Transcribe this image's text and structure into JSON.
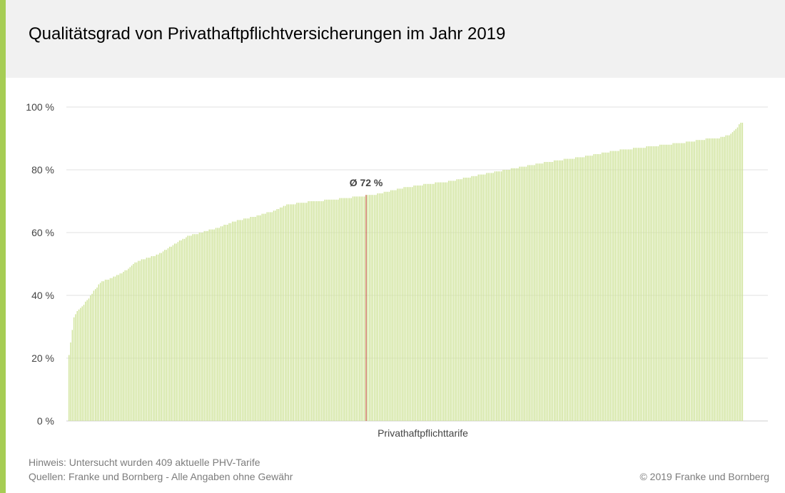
{
  "header": {
    "title": "Qualitätsgrad von Privathaftpflichtversicherungen im Jahr 2019"
  },
  "colors": {
    "accent": "#a6cd54",
    "header_background": "#f1f1f1",
    "bar": "#cfe39a",
    "average_marker": "#c0392b",
    "gridline": "#e2e2e2",
    "text": "#444444",
    "muted_text": "#7c7c7c"
  },
  "chart_data": {
    "type": "bar",
    "title": "Qualitätsgrad von Privathaftpflichtversicherungen im Jahr 2019",
    "xlabel": "Privathaftpflichttarife",
    "ylabel": "",
    "unit": "%",
    "ylim": [
      0,
      100
    ],
    "yticks": [
      0,
      20,
      40,
      60,
      80,
      100
    ],
    "ytick_labels": [
      "0 %",
      "20 %",
      "40 %",
      "60 %",
      "80 %",
      "100 %"
    ],
    "grid": true,
    "sorted": "ascending",
    "category_count": 409,
    "value_profile": [
      [
        0,
        21
      ],
      [
        1,
        25
      ],
      [
        2,
        29
      ],
      [
        3,
        33
      ],
      [
        5,
        35
      ],
      [
        8,
        36.5
      ],
      [
        12,
        39
      ],
      [
        16,
        42
      ],
      [
        20,
        44.5
      ],
      [
        25,
        45.3
      ],
      [
        30,
        46.5
      ],
      [
        36,
        48.5
      ],
      [
        40,
        50.5
      ],
      [
        45,
        51.5
      ],
      [
        50,
        52.3
      ],
      [
        55,
        53.3
      ],
      [
        60,
        55
      ],
      [
        65,
        56.7
      ],
      [
        72,
        58.8
      ],
      [
        80,
        60
      ],
      [
        90,
        61.5
      ],
      [
        100,
        63.5
      ],
      [
        115,
        65.5
      ],
      [
        125,
        67
      ],
      [
        132,
        68.8
      ],
      [
        140,
        69.5
      ],
      [
        160,
        70.5
      ],
      [
        175,
        71.5
      ],
      [
        185,
        72
      ],
      [
        200,
        74
      ],
      [
        215,
        75.3
      ],
      [
        230,
        76.3
      ],
      [
        250,
        78.5
      ],
      [
        270,
        80.5
      ],
      [
        290,
        82.5
      ],
      [
        310,
        84
      ],
      [
        330,
        86
      ],
      [
        350,
        87.3
      ],
      [
        370,
        88.5
      ],
      [
        385,
        89.7
      ],
      [
        395,
        90.3
      ],
      [
        400,
        91.2
      ],
      [
        403,
        92.5
      ],
      [
        405,
        93.5
      ],
      [
        406,
        94.3
      ],
      [
        407,
        95
      ],
      [
        408,
        95.2
      ]
    ],
    "average": {
      "value": 72,
      "label": "Ø 72 %"
    }
  },
  "footer": {
    "note": "Hinweis: Untersucht wurden 409 aktuelle PHV-Tarife",
    "sources": "Quellen: Franke und Bornberg - Alle Angaben ohne Gewähr",
    "copyright": "© 2019 Franke und Bornberg"
  }
}
